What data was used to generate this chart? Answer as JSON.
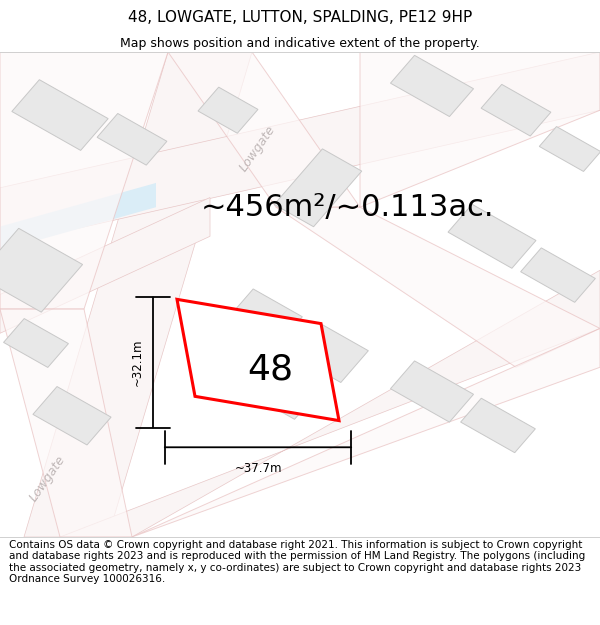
{
  "title": "48, LOWGATE, LUTTON, SPALDING, PE12 9HP",
  "subtitle": "Map shows position and indicative extent of the property.",
  "area_text": "~456m²/~0.113ac.",
  "number_label": "48",
  "dim_width": "~37.7m",
  "dim_height": "~32.1m",
  "street_label_1": "Lowgate",
  "street_label_2": "Lowgate",
  "footer_text": "Contains OS data © Crown copyright and database right 2021. This information is subject to Crown copyright and database rights 2023 and is reproduced with the permission of HM Land Registry. The polygons (including the associated geometry, namely x, y co-ordinates) are subject to Crown copyright and database rights 2023 Ordnance Survey 100026316.",
  "bg_color": "#ffffff",
  "map_bg": "#ffffff",
  "road_fill": "#faf5f5",
  "road_edge": "#e8c8c8",
  "building_fill": "#e8e8e8",
  "building_edge": "#c8c8c8",
  "plot_fill": "#f0eded",
  "plot_edge": "#e8c0c0",
  "water_color": "#daedf7",
  "highlight_color": "#ff0000",
  "title_fontsize": 11,
  "subtitle_fontsize": 9,
  "area_fontsize": 22,
  "number_fontsize": 26,
  "footer_fontsize": 7.5,
  "street_label_color": "#c0b8b8",
  "street_label_fontsize": 9
}
